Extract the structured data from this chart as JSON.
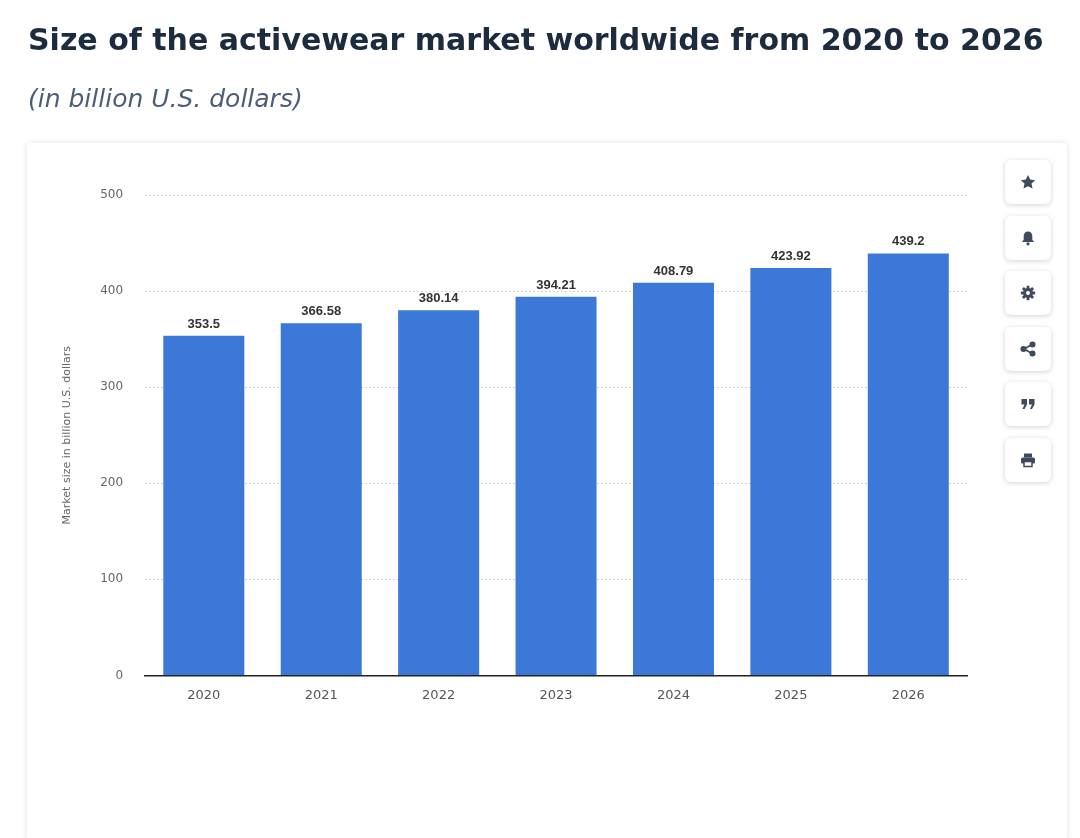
{
  "chart_data": {
    "type": "bar",
    "title": "Size of the activewear market worldwide from 2020 to 2026",
    "subtitle": "(in billion U.S. dollars)",
    "ylabel": "Market size in billion U.S. dollars",
    "categories": [
      "2020",
      "2021",
      "2022",
      "2023",
      "2024",
      "2025",
      "2026"
    ],
    "values": [
      353.5,
      366.58,
      380.14,
      394.21,
      408.79,
      423.92,
      439.2
    ],
    "color": "#3c78d8",
    "ylim": [
      0,
      500
    ],
    "yticks": [
      0,
      100,
      200,
      300,
      400,
      500
    ],
    "grid": "y",
    "data_labels": true,
    "legend": false
  }
}
